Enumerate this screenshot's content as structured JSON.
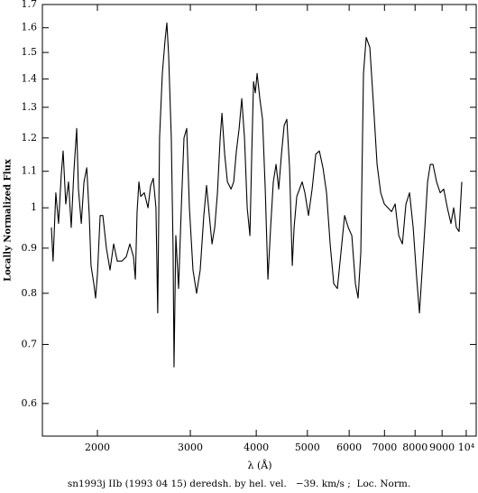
{
  "chart_data": {
    "type": "line",
    "xlabel": "λ (Å)",
    "ylabel": "Locally Normalized Flux",
    "caption": "sn1993j IIb (1993 04 15) deredsh. by hel. vel.   −39. km/s ;  Loc. Norm.",
    "xscale": "log",
    "yscale": "log",
    "xlim": [
      1573,
      10445
    ],
    "ylim": [
      0.551,
      1.7
    ],
    "xticks": [
      2000,
      3000,
      4000,
      5000,
      6000,
      7000,
      8000,
      9000,
      {
        "value": 10000,
        "label": "10⁴"
      }
    ],
    "yticks": [
      0.6,
      0.7,
      0.8,
      0.9,
      1,
      1.1,
      1.2,
      1.3,
      1.4,
      1.5,
      1.6,
      1.7
    ],
    "color": "#000000",
    "x": [
      1636,
      1648,
      1668,
      1688,
      1708,
      1722,
      1742,
      1763,
      1784,
      1805,
      1827,
      1841,
      1864,
      1886,
      1909,
      1930,
      1945,
      1969,
      1984,
      2000,
      2024,
      2048,
      2080,
      2113,
      2147,
      2181,
      2225,
      2268,
      2304,
      2341,
      2360,
      2378,
      2397,
      2416,
      2454,
      2494,
      2523,
      2552,
      2582,
      2602,
      2623,
      2655,
      2687,
      2708,
      2729,
      2761,
      2783,
      2794,
      2816,
      2850,
      2884,
      2918,
      2953,
      2988,
      3035,
      3083,
      3132,
      3182,
      3220,
      3259,
      3298,
      3337,
      3377,
      3417,
      3444,
      3485,
      3527,
      3583,
      3625,
      3668,
      3712,
      3755,
      3800,
      3845,
      3891,
      3922,
      3953,
      3984,
      4015,
      4063,
      4111,
      4160,
      4209,
      4259,
      4309,
      4361,
      4412,
      4465,
      4518,
      4571,
      4626,
      4681,
      4718,
      4774,
      4831,
      4887,
      4946,
      5024,
      5104,
      5186,
      5268,
      5352,
      5436,
      5522,
      5610,
      5699,
      5789,
      5882,
      5975,
      6070,
      6166,
      6238,
      6313,
      6387,
      6463,
      6566,
      6671,
      6777,
      6885,
      6995,
      7106,
      7219,
      7333,
      7450,
      7569,
      7687,
      7809,
      7933,
      8059,
      8154,
      8251,
      8349,
      8448,
      8549,
      8650,
      8787,
      8926,
      9066,
      9209,
      9356,
      9467,
      9578,
      9693,
      9808
    ],
    "values": [
      0.95,
      0.87,
      1.04,
      0.96,
      1.09,
      1.16,
      1.01,
      1.07,
      0.95,
      1.1,
      1.23,
      1.05,
      0.96,
      1.07,
      1.11,
      0.98,
      0.86,
      0.82,
      0.79,
      0.84,
      0.98,
      0.98,
      0.9,
      0.85,
      0.91,
      0.87,
      0.87,
      0.88,
      0.91,
      0.88,
      0.83,
      0.99,
      1.07,
      1.03,
      1.04,
      1.0,
      1.06,
      1.08,
      1.0,
      0.76,
      1.2,
      1.42,
      1.55,
      1.62,
      1.49,
      1.2,
      0.89,
      0.66,
      0.93,
      0.81,
      1.0,
      1.2,
      1.23,
      1.0,
      0.85,
      0.8,
      0.85,
      0.98,
      1.06,
      0.98,
      0.91,
      0.95,
      1.04,
      1.2,
      1.28,
      1.15,
      1.07,
      1.05,
      1.07,
      1.16,
      1.23,
      1.33,
      1.2,
      1.0,
      0.93,
      1.15,
      1.39,
      1.35,
      1.42,
      1.33,
      1.26,
      1.05,
      0.83,
      0.95,
      1.07,
      1.12,
      1.05,
      1.15,
      1.24,
      1.26,
      1.11,
      0.86,
      0.95,
      1.03,
      1.05,
      1.07,
      1.04,
      0.98,
      1.05,
      1.15,
      1.16,
      1.11,
      1.04,
      0.91,
      0.82,
      0.81,
      0.89,
      0.98,
      0.95,
      0.93,
      0.82,
      0.79,
      0.89,
      1.42,
      1.56,
      1.52,
      1.31,
      1.12,
      1.04,
      1.01,
      1.0,
      0.99,
      1.01,
      0.93,
      0.91,
      1.01,
      1.04,
      0.95,
      0.83,
      0.76,
      0.85,
      0.95,
      1.07,
      1.12,
      1.12,
      1.07,
      1.04,
      1.05,
      1.0,
      0.96,
      1.0,
      0.95,
      0.94,
      1.07
    ]
  }
}
